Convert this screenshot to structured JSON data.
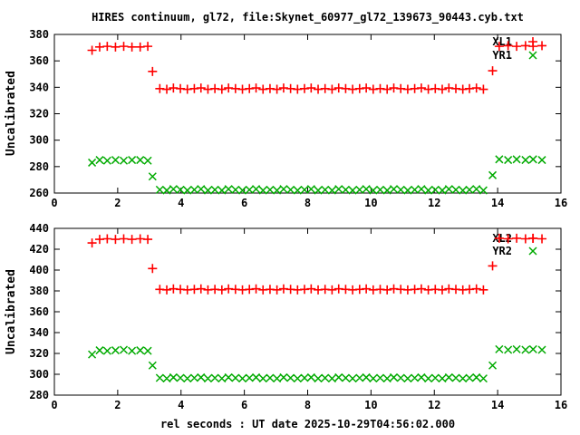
{
  "chart_data": [
    {
      "type": "scatter",
      "title": "HIRES continuum, gl72, file:Skynet_60977_gl72_139673_90443.cyb.txt",
      "xlabel": "",
      "ylabel": "Uncalibrated",
      "xlim": [
        0,
        16
      ],
      "ylim": [
        260,
        380
      ],
      "xticks": [
        0,
        2,
        4,
        6,
        8,
        10,
        12,
        14,
        16
      ],
      "yticks": [
        260,
        280,
        300,
        320,
        340,
        360,
        380
      ],
      "grid": false,
      "legend_position": "top-right-inside",
      "x": [
        1.19,
        1.43,
        1.67,
        1.93,
        2.19,
        2.45,
        2.71,
        2.95,
        3.1,
        3.33,
        3.55,
        3.76,
        3.98,
        4.2,
        4.42,
        4.63,
        4.85,
        5.07,
        5.29,
        5.5,
        5.72,
        5.94,
        6.16,
        6.37,
        6.59,
        6.81,
        7.03,
        7.24,
        7.46,
        7.68,
        7.9,
        8.11,
        8.33,
        8.55,
        8.77,
        8.98,
        9.2,
        9.42,
        9.64,
        9.85,
        10.07,
        10.29,
        10.51,
        10.72,
        10.94,
        11.16,
        11.38,
        11.59,
        11.81,
        12.03,
        12.25,
        12.46,
        12.68,
        12.9,
        13.11,
        13.33,
        13.55,
        13.84,
        14.05,
        14.33,
        14.6,
        14.88,
        15.12,
        15.4
      ],
      "series": [
        {
          "name": "XL1",
          "marker": "plus",
          "color": "#ff0000",
          "y": [
            368,
            370.5,
            371,
            370.5,
            371,
            370.5,
            370.5,
            371,
            352,
            339,
            338.5,
            339.5,
            339,
            338.5,
            339,
            339.5,
            338.5,
            339,
            338.5,
            339.5,
            339,
            338.5,
            339,
            339.5,
            338.5,
            339,
            338.5,
            339.5,
            339,
            338.5,
            339,
            339.5,
            338.5,
            339,
            338.5,
            339.5,
            339,
            338.5,
            339,
            339.5,
            338.5,
            339,
            338.5,
            339.5,
            339,
            338.5,
            339,
            339.5,
            338.5,
            339,
            338.5,
            339.5,
            339,
            338.5,
            339,
            339.5,
            338.5,
            352.5,
            371,
            371.5,
            371,
            371.5,
            371,
            371.5
          ]
        },
        {
          "name": "YR1",
          "marker": "cross",
          "color": "#00aa00",
          "y": [
            283,
            285,
            284.5,
            285,
            284.5,
            285,
            285,
            284.5,
            272.5,
            262.5,
            262,
            263,
            262.5,
            262,
            262.5,
            263,
            262,
            262.5,
            262,
            263,
            262.5,
            262,
            262.5,
            263,
            262,
            262.5,
            262,
            263,
            262.5,
            262,
            262.5,
            263,
            262,
            262.5,
            262,
            263,
            262.5,
            262,
            262.5,
            263,
            262,
            262.5,
            262,
            263,
            262.5,
            262,
            262.5,
            263,
            262,
            262.5,
            262,
            263,
            262.5,
            262,
            262.5,
            263,
            262,
            273.5,
            285.5,
            285,
            285.5,
            285,
            285.5,
            285
          ]
        }
      ]
    },
    {
      "type": "scatter",
      "title": "",
      "xlabel": "rel seconds : UT date 2025-10-29T04:56:02.000",
      "ylabel": "Uncalibrated",
      "xlim": [
        0,
        16
      ],
      "ylim": [
        280,
        440
      ],
      "xticks": [
        0,
        2,
        4,
        6,
        8,
        10,
        12,
        14,
        16
      ],
      "yticks": [
        280,
        300,
        320,
        340,
        360,
        380,
        400,
        420,
        440
      ],
      "grid": false,
      "legend_position": "top-right-inside",
      "x": [
        1.19,
        1.43,
        1.67,
        1.93,
        2.19,
        2.45,
        2.71,
        2.95,
        3.1,
        3.33,
        3.55,
        3.76,
        3.98,
        4.2,
        4.42,
        4.63,
        4.85,
        5.07,
        5.29,
        5.5,
        5.72,
        5.94,
        6.16,
        6.37,
        6.59,
        6.81,
        7.03,
        7.24,
        7.46,
        7.68,
        7.9,
        8.11,
        8.33,
        8.55,
        8.77,
        8.98,
        9.2,
        9.42,
        9.64,
        9.85,
        10.07,
        10.29,
        10.51,
        10.72,
        10.94,
        11.16,
        11.38,
        11.59,
        11.81,
        12.03,
        12.25,
        12.46,
        12.68,
        12.9,
        13.11,
        13.33,
        13.55,
        13.84,
        14.05,
        14.33,
        14.6,
        14.88,
        15.12,
        15.4
      ],
      "series": [
        {
          "name": "XL2",
          "marker": "plus",
          "color": "#ff0000",
          "y": [
            426,
            429.5,
            430,
            429.5,
            430,
            429.5,
            430,
            429.5,
            401.5,
            381.5,
            381,
            382,
            381.5,
            381,
            381.5,
            382,
            381,
            381.5,
            381,
            382,
            381.5,
            381,
            381.5,
            382,
            381,
            381.5,
            381,
            382,
            381.5,
            381,
            381.5,
            382,
            381,
            381.5,
            381,
            382,
            381.5,
            381,
            381.5,
            382,
            381,
            381.5,
            381,
            382,
            381.5,
            381,
            381.5,
            382,
            381,
            381.5,
            381,
            382,
            381.5,
            381,
            381.5,
            382,
            381,
            404,
            430.5,
            430,
            430.5,
            430,
            430.5,
            430
          ]
        },
        {
          "name": "YR2",
          "marker": "cross",
          "color": "#00aa00",
          "y": [
            319,
            323,
            322.5,
            323,
            323.5,
            322.5,
            323,
            322.5,
            308.5,
            296.5,
            296,
            297,
            296.5,
            296,
            296.5,
            297,
            296,
            296.5,
            296,
            297,
            296.5,
            296,
            296.5,
            297,
            296,
            296.5,
            296,
            297,
            296.5,
            296,
            296.5,
            297,
            296,
            296.5,
            296,
            297,
            296.5,
            296,
            296.5,
            297,
            296,
            296.5,
            296,
            297,
            296.5,
            296,
            296.5,
            297,
            296,
            296.5,
            296,
            297,
            296.5,
            296,
            296.5,
            297,
            296,
            308.5,
            324,
            323.5,
            324,
            323.5,
            324,
            323.5
          ]
        }
      ]
    }
  ]
}
